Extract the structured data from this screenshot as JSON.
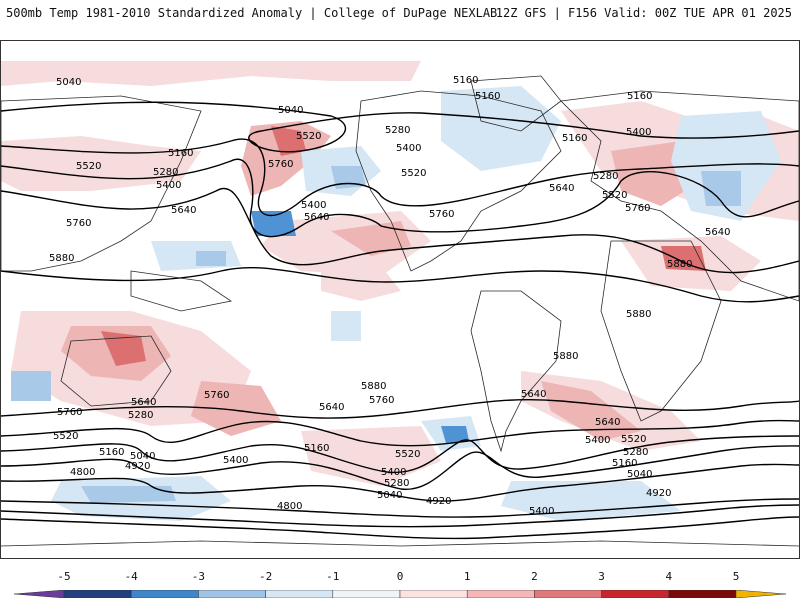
{
  "header": {
    "title_left": "500mb Temp 1981-2010 Standardized Anomaly | College of DuPage NEXLAB",
    "title_right": "12Z GFS | F156 Valid: 00Z TUE APR 01 2025"
  },
  "map": {
    "contour_labels": [
      "5040",
      "5160",
      "5160",
      "5160",
      "5040",
      "5520",
      "5280",
      "5400",
      "5160",
      "5400",
      "5520",
      "5760",
      "5160",
      "5280",
      "5400",
      "5520",
      "5640",
      "5760",
      "5400",
      "5640",
      "5520",
      "5640",
      "5280",
      "5760",
      "5520",
      "5640",
      "5760",
      "5880",
      "5880",
      "5880",
      "5880",
      "5640",
      "5760",
      "5280",
      "5640",
      "5760",
      "5640",
      "5400",
      "5520",
      "5160",
      "5040",
      "4920",
      "5400",
      "5160",
      "5520",
      "5880",
      "5760",
      "5640",
      "5400",
      "5280",
      "5040",
      "4920",
      "4800",
      "4800",
      "5400",
      "5520",
      "5280",
      "5160",
      "5040",
      "4920"
    ],
    "colors": {
      "contour": "#000000",
      "coast": "#2a2a2a",
      "anom_pos_1": "#f6dcdc",
      "anom_pos_2": "#eeb5b5",
      "anom_pos_3": "#dc7070",
      "anom_neg_1": "#d5e6f4",
      "anom_neg_2": "#a8c9e8",
      "anom_neg_3": "#4f93d4"
    }
  },
  "colorbar": {
    "ticks": [
      "-5",
      "-4",
      "-3",
      "-2",
      "-1",
      "0",
      "1",
      "2",
      "3",
      "4",
      "5"
    ],
    "colors": [
      "#6a3d9a",
      "#243f7d",
      "#3e86c9",
      "#9fc3e6",
      "#d6e6f3",
      "#f0f4f8",
      "#fde2e2",
      "#f4b6b6",
      "#e07a7a",
      "#c8262e",
      "#7a0a0a",
      "#f0b400"
    ]
  }
}
